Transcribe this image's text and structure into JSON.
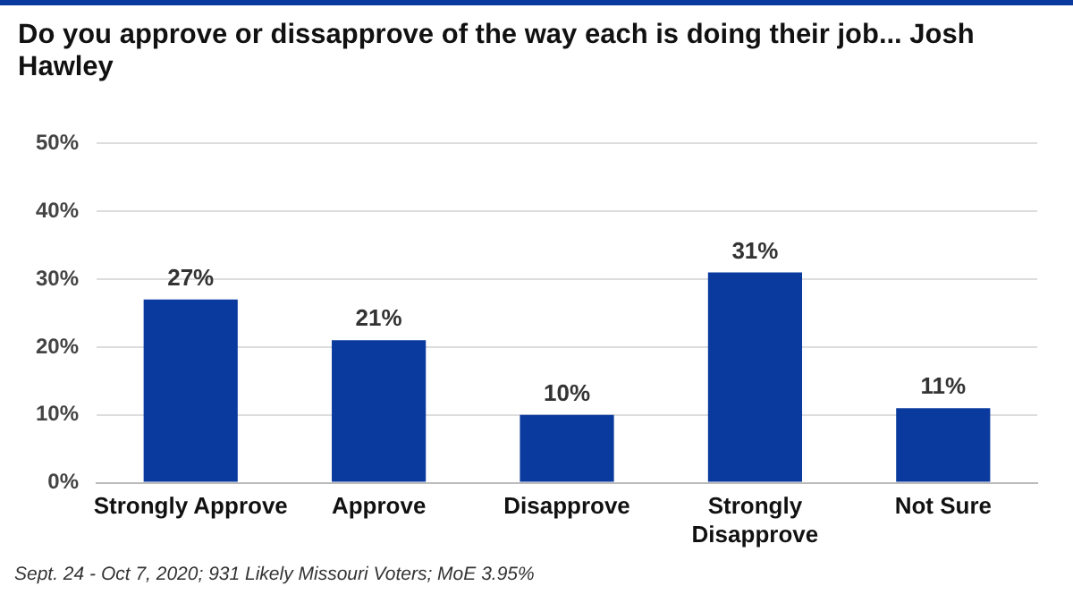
{
  "chart_data": {
    "type": "bar",
    "title": "Do you approve or dissapprove of the way each is doing their job... Josh Hawley",
    "categories": [
      "Strongly Approve",
      "Approve",
      "Disapprove",
      "Strongly Disapprove",
      "Not Sure"
    ],
    "values": [
      27,
      21,
      10,
      31,
      11
    ],
    "color": "#0a3a9e",
    "value_labels": [
      "27%",
      "21%",
      "10%",
      "31%",
      "11%"
    ],
    "ylim": [
      0,
      50
    ],
    "yticks": [
      {
        "value": 0,
        "label": "0%"
      },
      {
        "value": 10,
        "label": "10%"
      },
      {
        "value": 20,
        "label": "20%"
      },
      {
        "value": 30,
        "label": "30%"
      },
      {
        "value": 40,
        "label": "40%"
      },
      {
        "value": 50,
        "label": "50%"
      }
    ],
    "grid": "y",
    "annotations": [
      "Sept. 24 - Oct 7, 2020; 931 Likely Missouri Voters; MoE  3.95%"
    ]
  }
}
